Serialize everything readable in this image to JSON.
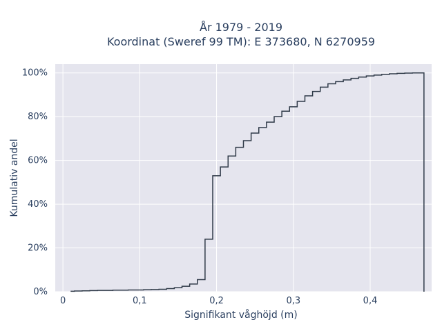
{
  "chart_data": {
    "type": "line",
    "line_shape": "step",
    "title_lines": [
      "År 1979 - 2019",
      "Koordinat (Sweref 99 TM): E 373680, N 6270959"
    ],
    "xlabel": "Signifikant våghöjd (m)",
    "ylabel": "Kumulativ andel",
    "xlim": [
      -0.01,
      0.48
    ],
    "ylim": [
      0,
      1.04
    ],
    "x_ticks": [
      0,
      0.1,
      0.2,
      0.3,
      0.4
    ],
    "x_tick_labels": [
      "0",
      "0,1",
      "0,2",
      "0,3",
      "0,4"
    ],
    "y_ticks": [
      0,
      0.2,
      0.4,
      0.6,
      0.8,
      1.0
    ],
    "y_tick_labels": [
      "0%",
      "20%",
      "40%",
      "60%",
      "80%",
      "100%"
    ],
    "grid": true,
    "colors": {
      "line": "#2f3a48",
      "plot_bg": "#e5e5ee",
      "grid": "#ffffff",
      "text": "#2a3f5f"
    },
    "series": [
      {
        "x": [
          0.01,
          0.02,
          0.03,
          0.04,
          0.05,
          0.06,
          0.07,
          0.08,
          0.09,
          0.1,
          0.11,
          0.12,
          0.13,
          0.14,
          0.15,
          0.16,
          0.17,
          0.18,
          0.19,
          0.2,
          0.21,
          0.22,
          0.23,
          0.24,
          0.25,
          0.26,
          0.27,
          0.28,
          0.29,
          0.3,
          0.31,
          0.32,
          0.33,
          0.34,
          0.35,
          0.36,
          0.37,
          0.38,
          0.39,
          0.4,
          0.41,
          0.42,
          0.43,
          0.44,
          0.45,
          0.46,
          0.47
        ],
        "y": [
          0.002,
          0.003,
          0.004,
          0.005,
          0.006,
          0.006,
          0.007,
          0.007,
          0.008,
          0.008,
          0.009,
          0.01,
          0.011,
          0.014,
          0.018,
          0.025,
          0.035,
          0.055,
          0.24,
          0.53,
          0.57,
          0.62,
          0.66,
          0.69,
          0.725,
          0.75,
          0.775,
          0.8,
          0.825,
          0.845,
          0.87,
          0.895,
          0.915,
          0.935,
          0.95,
          0.96,
          0.968,
          0.975,
          0.981,
          0.986,
          0.99,
          0.993,
          0.996,
          0.998,
          0.999,
          1.0,
          1.0
        ]
      }
    ]
  }
}
